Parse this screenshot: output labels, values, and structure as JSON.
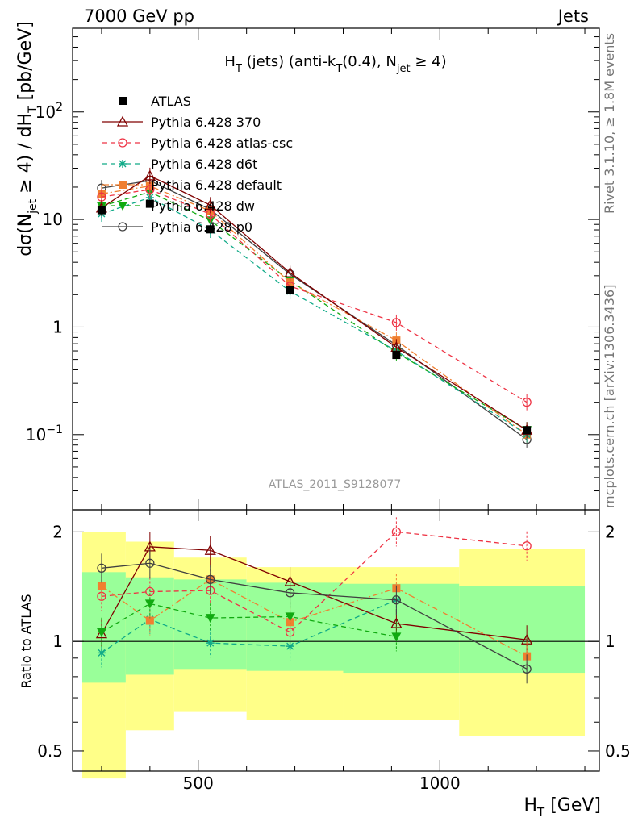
{
  "header": {
    "left": "7000 GeV pp",
    "right": "Jets"
  },
  "side_labels": {
    "rivet": "Rivet 3.1.10, ≥ 1.8M events",
    "source": "mcplots.cern.ch [arXiv:1306.3436]"
  },
  "analysis_id": "ATLAS_2011_S9128077",
  "chart_data": [
    {
      "type": "line",
      "panel": "main",
      "title": "H_T (jets) (anti-k_T(0.4), N_jet ≥ 4)",
      "ylabel": "dσ(N_jet ≥ 4) / dH_T [pb/GeV]",
      "yscale": "log",
      "ylim": [
        0.02,
        600
      ],
      "xlim": [
        240,
        1330
      ],
      "y_ticks": [
        "10^-1",
        "1",
        "10",
        "10^2"
      ],
      "legend_position": "top-left",
      "x": [
        300,
        400,
        525,
        690,
        910,
        1180
      ],
      "series": [
        {
          "name": "ATLAS",
          "color": "#000000",
          "marker": "square-filled",
          "line": "none",
          "values": [
            12.2,
            14.0,
            8.1,
            2.2,
            0.55,
            0.11
          ]
        },
        {
          "name": "Pythia 6.428 370",
          "color": "#800000",
          "marker": "triangle-open",
          "line": "solid",
          "values": [
            12.8,
            25.5,
            13.6,
            3.2,
            0.65,
            0.11
          ]
        },
        {
          "name": "Pythia 6.428 atlas-csc",
          "color": "#ee3344",
          "marker": "circle-open",
          "line": "dashed",
          "values": [
            16.2,
            19.0,
            11.2,
            2.4,
            1.1,
            0.2
          ]
        },
        {
          "name": "Pythia 6.428 d6t",
          "color": "#11aa88",
          "marker": "star",
          "line": "dashed",
          "values": [
            11.3,
            16.0,
            8.0,
            2.15,
            0.6,
            0.1
          ]
        },
        {
          "name": "Pythia 6.428 default",
          "color": "#f07f30",
          "marker": "square-filled",
          "line": "dashdot",
          "values": [
            17.3,
            20.5,
            12.0,
            2.6,
            0.75,
            0.1
          ]
        },
        {
          "name": "Pythia 6.428 dw",
          "color": "#11aa11",
          "marker": "triangle-down-filled",
          "line": "dashed",
          "values": [
            13.3,
            18.0,
            9.8,
            2.7,
            0.58,
            0.11
          ]
        },
        {
          "name": "Pythia 6.428 p0",
          "color": "#404040",
          "marker": "circle-open",
          "line": "solid",
          "values": [
            19.6,
            23.0,
            12.4,
            3.1,
            0.68,
            0.09
          ]
        }
      ]
    },
    {
      "type": "line",
      "panel": "ratio",
      "xlabel": "H_T [GeV]",
      "ylabel": "Ratio to ATLAS",
      "yscale": "log",
      "ylim": [
        0.44,
        2.3
      ],
      "xlim": [
        240,
        1330
      ],
      "x_ticks": [
        500,
        1000
      ],
      "y_ticks": [
        0.5,
        1,
        2
      ],
      "bands": {
        "edges": [
          260,
          350,
          450,
          600,
          800,
          1040,
          1300
        ],
        "inner": [
          [
            0.77,
            1.55
          ],
          [
            0.81,
            1.5
          ],
          [
            0.84,
            1.48
          ],
          [
            0.83,
            1.45
          ],
          [
            0.82,
            1.44
          ],
          [
            0.82,
            1.42
          ]
        ],
        "outer": [
          [
            0.42,
            2.0
          ],
          [
            0.57,
            1.88
          ],
          [
            0.64,
            1.7
          ],
          [
            0.61,
            1.6
          ],
          [
            0.61,
            1.6
          ],
          [
            0.55,
            1.8
          ]
        ],
        "inner_color": "#99ff99",
        "outer_color": "#ffff88"
      },
      "x": [
        300,
        400,
        525,
        690,
        910,
        1180
      ],
      "series": [
        {
          "name": "Pythia 6.428 370",
          "values": [
            1.05,
            1.82,
            1.78,
            1.46,
            1.12,
            1.01
          ]
        },
        {
          "name": "Pythia 6.428 atlas-csc",
          "values": [
            1.33,
            1.37,
            1.38,
            1.06,
            2.0,
            1.83
          ]
        },
        {
          "name": "Pythia 6.428 d6t",
          "values": [
            0.93,
            1.15,
            0.99,
            0.97,
            1.3,
            null
          ]
        },
        {
          "name": "Pythia 6.428 default",
          "values": [
            1.42,
            1.14,
            1.48,
            1.13,
            1.4,
            0.91
          ]
        },
        {
          "name": "Pythia 6.428 dw",
          "values": [
            1.06,
            1.27,
            1.16,
            1.17,
            1.03,
            null
          ]
        },
        {
          "name": "Pythia 6.428 p0",
          "values": [
            1.59,
            1.64,
            1.48,
            1.36,
            1.3,
            0.84
          ]
        }
      ]
    }
  ]
}
